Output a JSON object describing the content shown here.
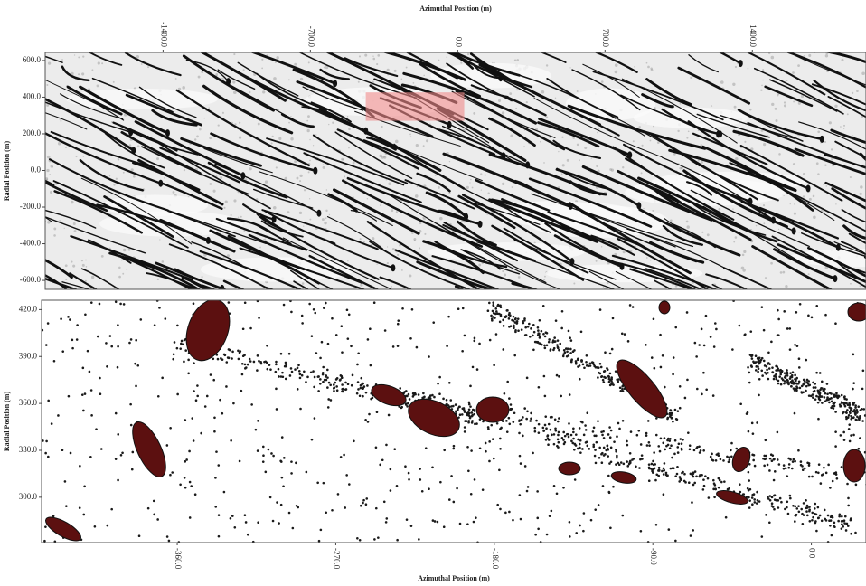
{
  "chart_data": [
    {
      "type": "density",
      "x_label": "Azimuthal Position (m)",
      "y_label": "Radial Position (m)",
      "xlim": [
        -1960,
        1940
      ],
      "ylim": [
        -649,
        644
      ],
      "xticks": [
        {
          "value": -1400,
          "label": "-1400.0"
        },
        {
          "value": -700,
          "label": "-700.0"
        },
        {
          "value": 0,
          "label": "0.0"
        },
        {
          "value": 700,
          "label": "700.0"
        },
        {
          "value": 1400,
          "label": "1400.0"
        }
      ],
      "yticks": [
        {
          "value": 600,
          "label": "600.0"
        },
        {
          "value": 400,
          "label": "400.0"
        },
        {
          "value": 200,
          "label": "200.0"
        },
        {
          "value": 0,
          "label": "0.0"
        },
        {
          "value": -200,
          "label": "-200.0"
        },
        {
          "value": -400,
          "label": "-400.0"
        },
        {
          "value": -600,
          "label": "-600.0"
        }
      ],
      "background": "#ececec",
      "mark_color": "#111111",
      "highlight_color": "#f08a8a"
    },
    {
      "type": "density",
      "x_label": "Azimuthal Position (m)",
      "y_label": "Radial Position (m)",
      "xlim": [
        -437,
        31
      ],
      "ylim": [
        271,
        426
      ],
      "xticks": [
        {
          "value": -360,
          "label": "-360.0"
        },
        {
          "value": -270,
          "label": "-270.0"
        },
        {
          "value": -180,
          "label": "-180.0"
        },
        {
          "value": -90,
          "label": "-90.0"
        },
        {
          "value": 0,
          "label": "0.0"
        }
      ],
      "yticks": [
        {
          "value": 420,
          "label": "420.0"
        },
        {
          "value": 390,
          "label": "390.0"
        },
        {
          "value": 360,
          "label": "360.0"
        },
        {
          "value": 330,
          "label": "330.0"
        },
        {
          "value": 300,
          "label": "300.0"
        }
      ],
      "background": "#ffffff",
      "mark_color": "#1a1a1a",
      "blob_color": "#5c1010"
    }
  ]
}
